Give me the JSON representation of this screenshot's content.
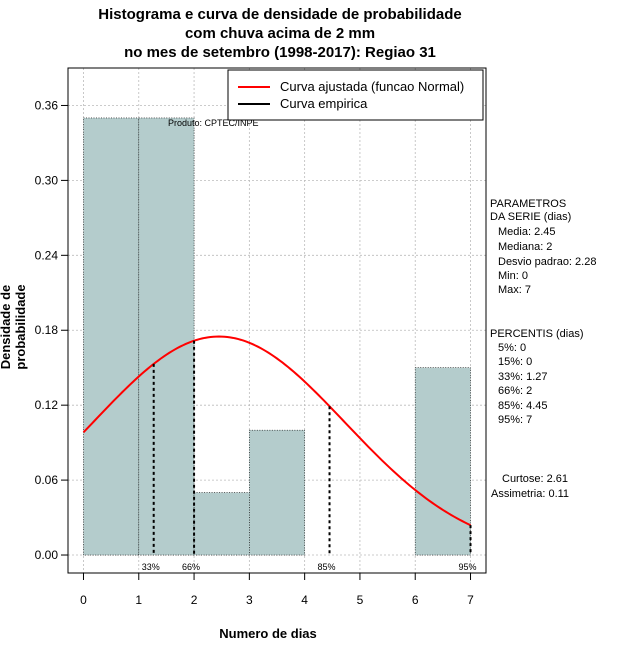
{
  "chart_data": {
    "type": "bar",
    "title_lines": [
      "Histograma e curva de densidade de probabilidade",
      "com chuva acima de 2 mm",
      "no mes de setembro (1998-2017): Regiao 31"
    ],
    "xlabel": "Numero de dias",
    "ylabel": "Densidade de probabilidade",
    "xlim": [
      -0.28,
      7.28
    ],
    "ylim": [
      -0.0144,
      0.39
    ],
    "xticks": [
      0,
      1,
      2,
      3,
      4,
      5,
      6,
      7
    ],
    "yticks": [
      0.0,
      0.06,
      0.12,
      0.18,
      0.24,
      0.3,
      0.36
    ],
    "ytick_labels": [
      "0.00",
      "0.06",
      "0.12",
      "0.18",
      "0.24",
      "0.30",
      "0.36"
    ],
    "grid": true,
    "bins": [
      {
        "from": 0,
        "to": 1,
        "density": 0.35
      },
      {
        "from": 1,
        "to": 2,
        "density": 0.35
      },
      {
        "from": 2,
        "to": 3,
        "density": 0.05
      },
      {
        "from": 3,
        "to": 4,
        "density": 0.1
      },
      {
        "from": 4,
        "to": 5,
        "density": 0.0
      },
      {
        "from": 5,
        "to": 6,
        "density": 0.0
      },
      {
        "from": 6,
        "to": 7,
        "density": 0.15
      }
    ],
    "normal_curve": {
      "mean": 2.45,
      "sd": 2.28,
      "x_from": 0,
      "x_to": 7
    },
    "percentile_lines": [
      {
        "label": "33%",
        "x": 1.27
      },
      {
        "label": "66%",
        "x": 2
      },
      {
        "label": "85%",
        "x": 4.45
      },
      {
        "label": "95%",
        "x": 7
      }
    ],
    "legend": [
      {
        "label": "Curva ajustada (funcao Normal)",
        "color": "#ff0000"
      },
      {
        "label": "Curva empirica",
        "color": "#000000"
      }
    ],
    "legend_position": "top-right",
    "product_label": "Produto: CPTEC/INPE"
  },
  "colors": {
    "bar_fill": "#b4cccc",
    "curve": "#ff0000",
    "grid": "#bbbbbb"
  },
  "parametros": {
    "heading1": "PARAMETROS",
    "heading2": "DA SERIE (dias)",
    "media": "Media: 2.45",
    "mediana": "Mediana: 2",
    "desvio": "Desvio padrao: 2.28",
    "min": "Min: 0",
    "max": "Max: 7"
  },
  "percentis": {
    "heading": "PERCENTIS (dias)",
    "p5": "5%: 0",
    "p15": "15%: 0",
    "p33": "33%: 1.27",
    "p66": "66%: 2",
    "p85": "85%: 4.45",
    "p95": "95%: 7"
  },
  "momentos": {
    "curtose": "Curtose: 2.61",
    "assimetria": "Assimetria: 0.11"
  }
}
